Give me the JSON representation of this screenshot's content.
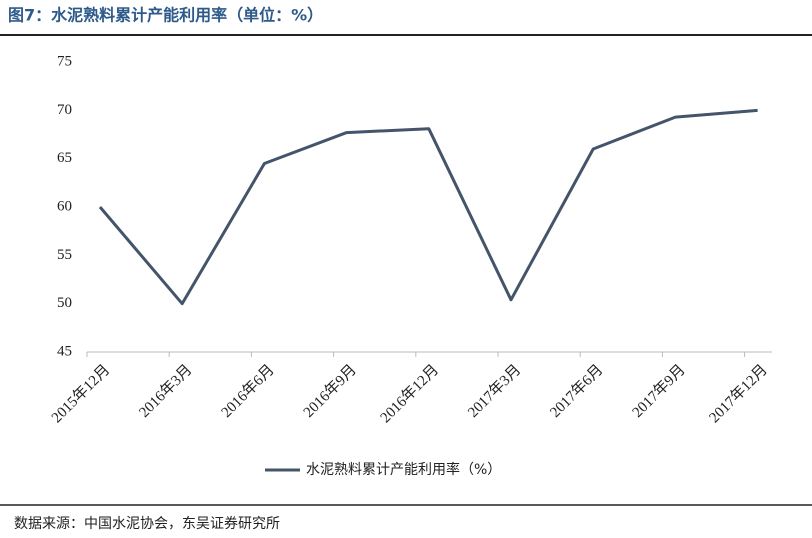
{
  "title": "图7：水泥熟料累计产能利用率（单位：%）",
  "source": "数据来源：中国水泥协会，东吴证券研究所",
  "chart_data": {
    "type": "line",
    "categories": [
      "2015年12月",
      "2016年3月",
      "2016年6月",
      "2016年9月",
      "2016年12月",
      "2017年3月",
      "2017年6月",
      "2017年9月",
      "2017年12月"
    ],
    "series": [
      {
        "name": "水泥熟料累计产能利用率（%）",
        "color": "#44546a",
        "values": [
          60,
          50,
          64.5,
          67.7,
          68.1,
          50.4,
          66,
          69.3,
          70
        ]
      }
    ],
    "ylim": [
      45,
      75
    ],
    "yticks": [
      45,
      50,
      55,
      60,
      65,
      70,
      75
    ],
    "grid": false,
    "legend": "bottom"
  }
}
